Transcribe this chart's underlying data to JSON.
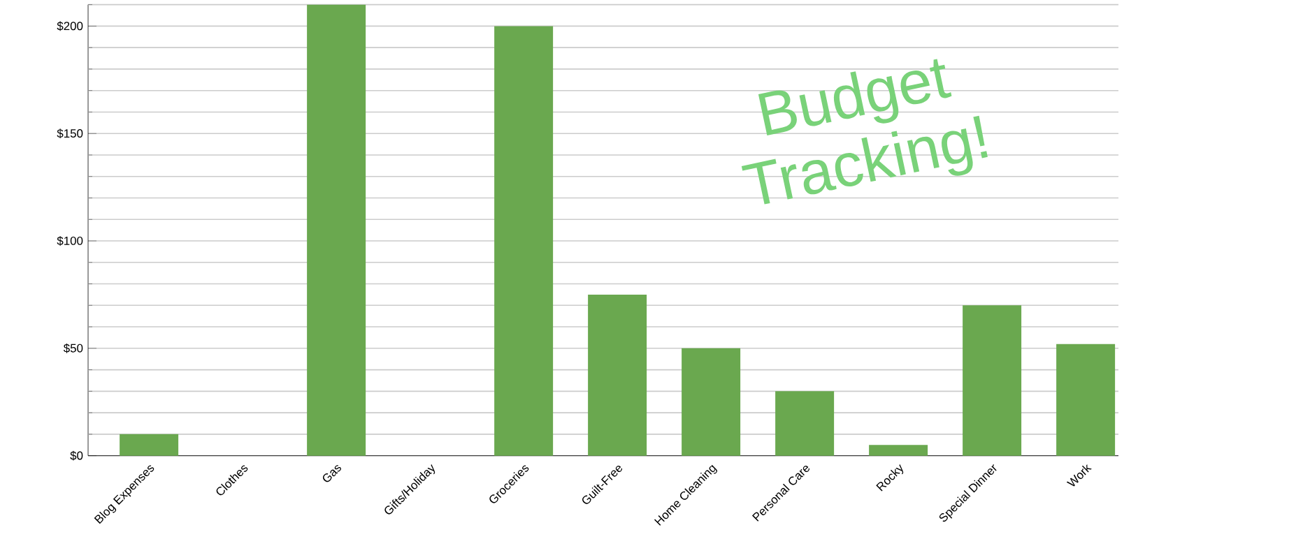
{
  "chart_data": {
    "type": "bar",
    "categories": [
      "Blog Expenses",
      "Clothes",
      "Gas",
      "Gifts/Holiday",
      "Groceries",
      "Guilt-Free",
      "Home Cleaning",
      "Personal Care",
      "Rocky",
      "Special Dinner",
      "Work"
    ],
    "values": [
      10,
      0,
      210,
      0,
      200,
      75,
      50,
      30,
      5,
      70,
      52
    ],
    "color": "#6aa84f",
    "ylim": [
      0,
      210
    ],
    "yticks": [
      {
        "value": 0,
        "label": "$0"
      },
      {
        "value": 10,
        "label": null
      },
      {
        "value": 20,
        "label": null
      },
      {
        "value": 30,
        "label": null
      },
      {
        "value": 40,
        "label": null
      },
      {
        "value": 50,
        "label": "$50"
      },
      {
        "value": 60,
        "label": null
      },
      {
        "value": 70,
        "label": null
      },
      {
        "value": 80,
        "label": null
      },
      {
        "value": 90,
        "label": null
      },
      {
        "value": 100,
        "label": "$100"
      },
      {
        "value": 110,
        "label": null
      },
      {
        "value": 120,
        "label": null
      },
      {
        "value": 130,
        "label": null
      },
      {
        "value": 140,
        "label": null
      },
      {
        "value": 150,
        "label": "$150"
      },
      {
        "value": 160,
        "label": null
      },
      {
        "value": 170,
        "label": null
      },
      {
        "value": 180,
        "label": null
      },
      {
        "value": 190,
        "label": null
      },
      {
        "value": 200,
        "label": "$200"
      },
      {
        "value": 210,
        "label": null
      }
    ],
    "grid": "y",
    "annotations": [
      "Budget Tracking!"
    ]
  }
}
